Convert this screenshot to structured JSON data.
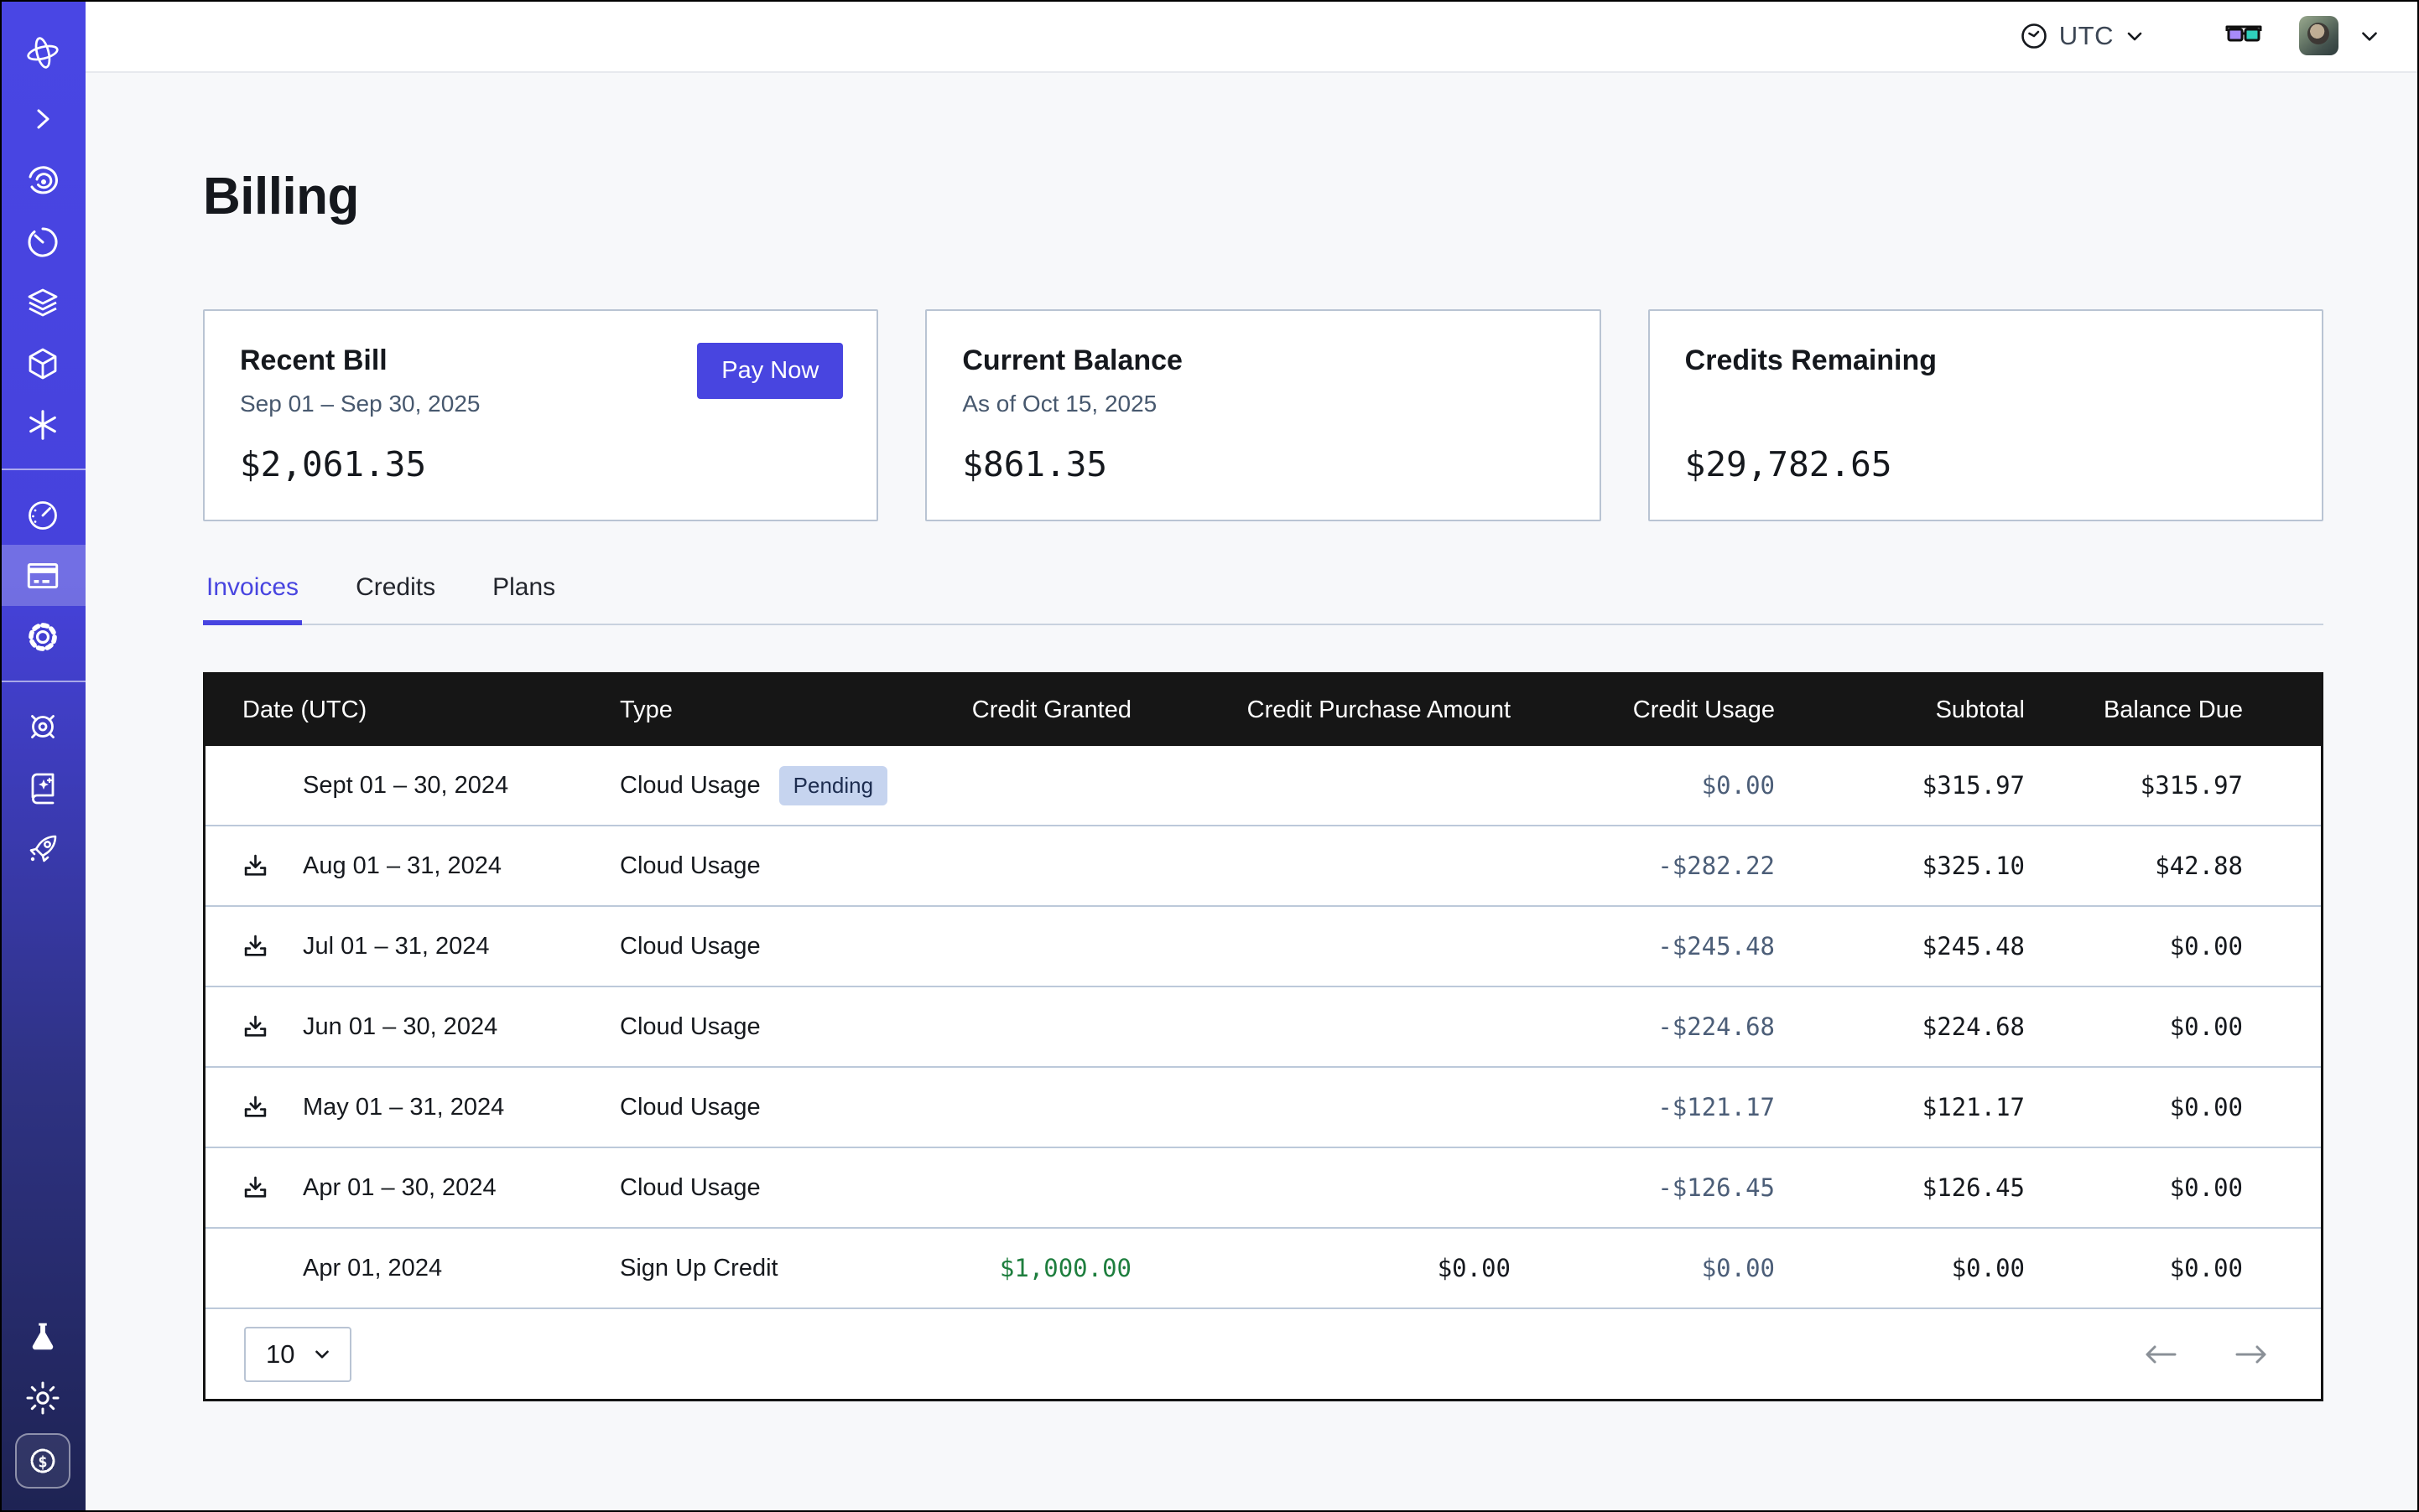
{
  "topbar": {
    "timezone_label": "UTC",
    "icons": [
      "clock-icon",
      "chevron-down-icon",
      "3d-glasses-icon",
      "user-avatar",
      "chevron-down-icon"
    ]
  },
  "sidebar": {
    "icons": [
      "app-logo",
      "expand-icon",
      "spiral-eye-icon",
      "timer-icon",
      "layers-icon",
      "cube-icon",
      "asterisk-icon",
      "gauge-icon",
      "billing-icon",
      "settings-icon",
      "helm-icon",
      "docs-book-icon",
      "rocket-icon",
      "flask-icon",
      "sun-icon",
      "dollar-badge-icon"
    ],
    "active_item": "billing"
  },
  "page": {
    "title": "Billing"
  },
  "cards": {
    "recent_bill": {
      "title": "Recent Bill",
      "period": "Sep 01 – Sep 30, 2025",
      "amount": "$2,061.35",
      "action_label": "Pay Now"
    },
    "current_balance": {
      "title": "Current Balance",
      "as_of": "As of Oct 15, 2025",
      "amount": "$861.35"
    },
    "credits_remaining": {
      "title": "Credits Remaining",
      "amount": "$29,782.65"
    }
  },
  "tabs": {
    "items": [
      {
        "label": "Invoices",
        "active": true
      },
      {
        "label": "Credits",
        "active": false
      },
      {
        "label": "Plans",
        "active": false
      }
    ]
  },
  "invoices_table": {
    "columns": [
      "Date (UTC)",
      "Type",
      "Credit Granted",
      "Credit Purchase Amount",
      "Credit Usage",
      "Subtotal",
      "Balance Due"
    ],
    "rows": [
      {
        "date": "Sept 01 – 30, 2024",
        "download": false,
        "type": "Cloud Usage",
        "badge": "Pending",
        "credit_granted": "",
        "credit_purchase": "",
        "credit_usage": "$0.00",
        "subtotal": "$315.97",
        "balance_due": "$315.97"
      },
      {
        "date": "Aug 01 – 31, 2024",
        "download": true,
        "type": "Cloud Usage",
        "badge": "",
        "credit_granted": "",
        "credit_purchase": "",
        "credit_usage": "-$282.22",
        "subtotal": "$325.10",
        "balance_due": "$42.88"
      },
      {
        "date": "Jul 01 – 31, 2024",
        "download": true,
        "type": "Cloud Usage",
        "badge": "",
        "credit_granted": "",
        "credit_purchase": "",
        "credit_usage": "-$245.48",
        "subtotal": "$245.48",
        "balance_due": "$0.00"
      },
      {
        "date": "Jun 01 – 30, 2024",
        "download": true,
        "type": "Cloud Usage",
        "badge": "",
        "credit_granted": "",
        "credit_purchase": "",
        "credit_usage": "-$224.68",
        "subtotal": "$224.68",
        "balance_due": "$0.00"
      },
      {
        "date": "May 01 – 31, 2024",
        "download": true,
        "type": "Cloud Usage",
        "badge": "",
        "credit_granted": "",
        "credit_purchase": "",
        "credit_usage": "-$121.17",
        "subtotal": "$121.17",
        "balance_due": "$0.00"
      },
      {
        "date": "Apr 01 – 30, 2024",
        "download": true,
        "type": "Cloud Usage",
        "badge": "",
        "credit_granted": "",
        "credit_purchase": "",
        "credit_usage": "-$126.45",
        "subtotal": "$126.45",
        "balance_due": "$0.00"
      },
      {
        "date": "Apr 01, 2024",
        "download": false,
        "type": "Sign Up Credit",
        "badge": "",
        "credit_granted": "$1,000.00",
        "credit_purchase": "$0.00",
        "credit_usage": "$0.00",
        "subtotal": "$0.00",
        "balance_due": "$0.00"
      }
    ],
    "pagination": {
      "page_size": "10"
    }
  },
  "colors": {
    "accent": "#4845e0",
    "sidebar_top": "#4946e4",
    "sidebar_bottom": "#1e2353",
    "table_header_bg": "#161616",
    "credit_usage_text": "#4c5e78",
    "credit_granted_positive": "#1e7e3e",
    "pending_badge_bg": "#c6d4ef",
    "pending_badge_text": "#1d2d50",
    "card_border": "#b9c4d3"
  }
}
